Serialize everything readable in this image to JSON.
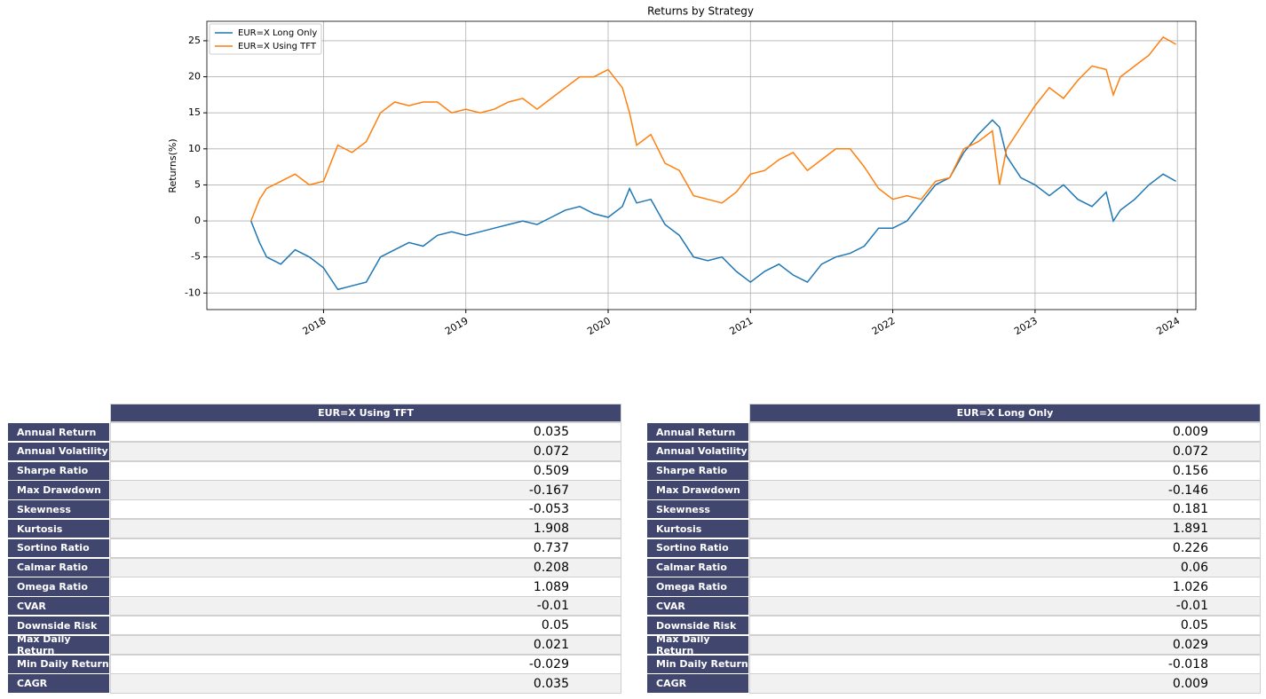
{
  "chart_data": {
    "type": "line",
    "title": "Returns by Strategy",
    "y_label": "Returns(%)",
    "x": [
      2017.49,
      2017.55,
      2017.6,
      2017.7,
      2017.8,
      2017.9,
      2018.0,
      2018.1,
      2018.2,
      2018.3,
      2018.4,
      2018.5,
      2018.6,
      2018.7,
      2018.8,
      2018.9,
      2019.0,
      2019.1,
      2019.2,
      2019.3,
      2019.4,
      2019.5,
      2019.6,
      2019.7,
      2019.8,
      2019.9,
      2020.0,
      2020.1,
      2020.15,
      2020.2,
      2020.3,
      2020.4,
      2020.5,
      2020.6,
      2020.7,
      2020.8,
      2020.9,
      2021.0,
      2021.1,
      2021.2,
      2021.3,
      2021.4,
      2021.5,
      2021.6,
      2021.7,
      2021.8,
      2021.9,
      2022.0,
      2022.1,
      2022.2,
      2022.3,
      2022.4,
      2022.5,
      2022.6,
      2022.7,
      2022.75,
      2022.8,
      2022.9,
      2023.0,
      2023.1,
      2023.2,
      2023.3,
      2023.4,
      2023.5,
      2023.55,
      2023.6,
      2023.7,
      2023.8,
      2023.9,
      2023.99
    ],
    "series": [
      {
        "name": "EUR=X Long Only",
        "color": "#1f77b4",
        "values": [
          0,
          -3,
          -5,
          -6,
          -4,
          -5,
          -6.5,
          -9.5,
          -9,
          -8.5,
          -5,
          -4,
          -3,
          -3.5,
          -2,
          -1.5,
          -2,
          -1.5,
          -1,
          -0.5,
          0,
          -0.5,
          0.5,
          1.5,
          2,
          1,
          0.5,
          2,
          4.5,
          2.5,
          3,
          -0.5,
          -2,
          -5,
          -5.5,
          -5,
          -7,
          -8.5,
          -7,
          -6,
          -7.5,
          -8.5,
          -6,
          -5,
          -4.5,
          -3.5,
          -1,
          -1,
          0,
          2.5,
          5,
          6,
          9.5,
          12,
          14,
          13,
          9,
          6,
          5,
          3.5,
          5,
          3,
          2,
          4,
          0,
          1.5,
          3,
          5,
          6.5,
          5.5
        ]
      },
      {
        "name": "EUR=X Using TFT",
        "color": "#ff7f0e",
        "values": [
          0,
          3,
          4.5,
          5.5,
          6.5,
          5,
          5.5,
          10.5,
          9.5,
          11,
          15,
          16.5,
          16,
          16.5,
          16.5,
          15,
          15.5,
          15,
          15.5,
          16.5,
          17,
          15.5,
          17,
          18.5,
          20,
          20,
          21,
          18.5,
          15,
          10.5,
          12,
          8,
          7,
          3.5,
          3,
          2.5,
          4,
          6.5,
          7,
          8.5,
          9.5,
          7,
          8.5,
          10,
          10,
          7.5,
          4.5,
          3,
          3.5,
          3,
          5.5,
          6,
          10,
          11,
          12.5,
          5,
          10,
          13,
          16,
          18.5,
          17,
          19.5,
          21.5,
          21,
          17.5,
          20,
          21.5,
          23,
          25.5,
          24.5
        ]
      }
    ],
    "xlim": [
      2017.18,
      2024.13
    ],
    "xticks": [
      2018,
      2019,
      2020,
      2021,
      2022,
      2023,
      2024
    ],
    "ylim": [
      -12.3,
      27.7
    ],
    "yticks": [
      -10,
      -5,
      0,
      5,
      10,
      15,
      20,
      25
    ],
    "grid": true,
    "legend": "upper left"
  },
  "tables": [
    {
      "header": "EUR=X Using TFT",
      "rows": [
        [
          "Annual Return",
          0.035
        ],
        [
          "Annual Volatility",
          0.072
        ],
        [
          "Sharpe Ratio",
          0.509
        ],
        [
          "Max Drawdown",
          -0.167
        ],
        [
          "Skewness",
          -0.053
        ],
        [
          "Kurtosis",
          1.908
        ],
        [
          "Sortino Ratio",
          0.737
        ],
        [
          "Calmar Ratio",
          0.208
        ],
        [
          "Omega Ratio",
          1.089
        ],
        [
          "CVAR",
          -0.01
        ],
        [
          "Downside Risk",
          0.05
        ],
        [
          "Max Daily Return",
          0.021
        ],
        [
          "Min Daily Return",
          -0.029
        ],
        [
          "CAGR",
          0.035
        ]
      ]
    },
    {
      "header": "EUR=X Long Only",
      "rows": [
        [
          "Annual Return",
          0.009
        ],
        [
          "Annual Volatility",
          0.072
        ],
        [
          "Sharpe Ratio",
          0.156
        ],
        [
          "Max Drawdown",
          -0.146
        ],
        [
          "Skewness",
          0.181
        ],
        [
          "Kurtosis",
          1.891
        ],
        [
          "Sortino Ratio",
          0.226
        ],
        [
          "Calmar Ratio",
          0.06
        ],
        [
          "Omega Ratio",
          1.026
        ],
        [
          "CVAR",
          -0.01
        ],
        [
          "Downside Risk",
          0.05
        ],
        [
          "Max Daily Return",
          0.029
        ],
        [
          "Min Daily Return",
          -0.018
        ],
        [
          "CAGR",
          0.009
        ]
      ]
    }
  ]
}
